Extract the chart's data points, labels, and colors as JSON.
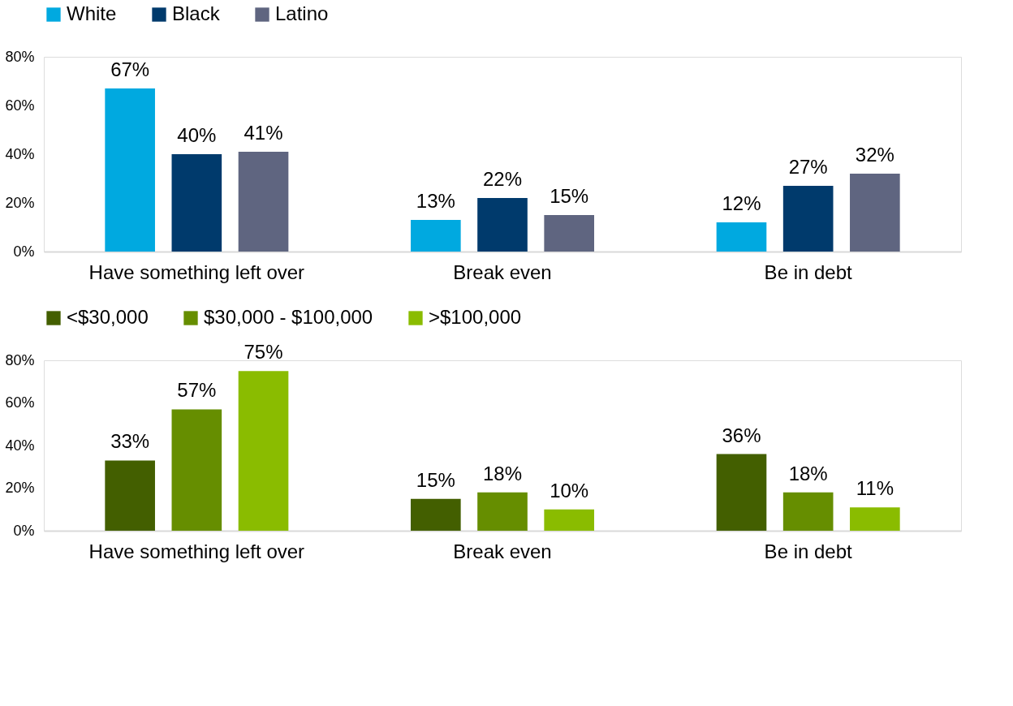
{
  "chart_data": [
    {
      "type": "bar",
      "categories": [
        "Have something left over",
        "Break even",
        "Be in debt"
      ],
      "series": [
        {
          "name": "White",
          "color": "#00a9e0",
          "values": [
            67,
            13,
            12
          ],
          "value_labels": [
            "67%",
            "13%",
            "12%"
          ]
        },
        {
          "name": "Black",
          "color": "#003a6c",
          "values": [
            40,
            22,
            27
          ],
          "value_labels": [
            "40%",
            "22%",
            "27%"
          ]
        },
        {
          "name": "Latino",
          "color": "#5f6580",
          "values": [
            41,
            15,
            32
          ],
          "value_labels": [
            "41%",
            "15%",
            "32%"
          ]
        }
      ],
      "ylim": [
        0,
        80
      ],
      "yticks": [
        {
          "value": 0,
          "label": "0%"
        },
        {
          "value": 20,
          "label": "20%"
        },
        {
          "value": 40,
          "label": "40%"
        },
        {
          "value": 60,
          "label": "60%"
        },
        {
          "value": 80,
          "label": "80%"
        }
      ],
      "grid": false,
      "legend": "top"
    },
    {
      "type": "bar",
      "categories": [
        "Have something left over",
        "Break even",
        "Be in debt"
      ],
      "series": [
        {
          "name": "<$30,000",
          "color": "#435f00",
          "values": [
            33,
            15,
            36
          ],
          "value_labels": [
            "33%",
            "15%",
            "36%"
          ]
        },
        {
          "name": "$30,000 - $100,000",
          "color": "#668e00",
          "values": [
            57,
            18,
            18
          ],
          "value_labels": [
            "57%",
            "18%",
            "18%"
          ]
        },
        {
          "name": ">$100,000",
          "color": "#8abc00",
          "values": [
            75,
            10,
            11
          ],
          "value_labels": [
            "75%",
            "10%",
            "11%"
          ]
        }
      ],
      "ylim": [
        0,
        80
      ],
      "yticks": [
        {
          "value": 0,
          "label": "0%"
        },
        {
          "value": 20,
          "label": "20%"
        },
        {
          "value": 40,
          "label": "40%"
        },
        {
          "value": 60,
          "label": "60%"
        },
        {
          "value": 80,
          "label": "80%"
        }
      ],
      "grid": false,
      "legend": "top"
    }
  ]
}
